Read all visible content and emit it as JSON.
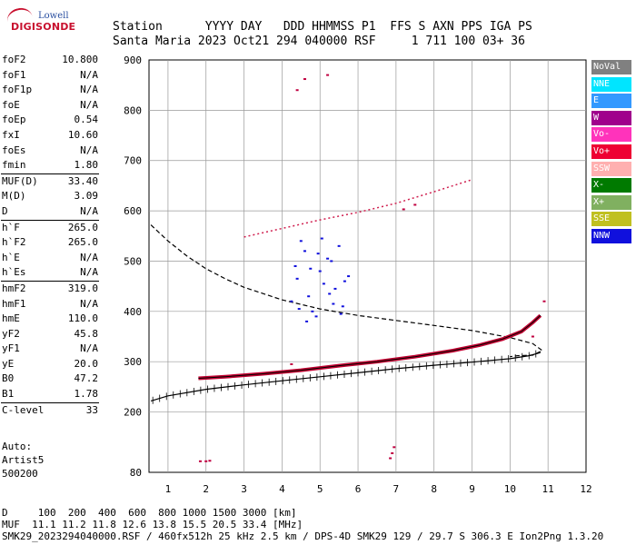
{
  "logo": {
    "line1": "Lowell",
    "line2": "DIGISONDE"
  },
  "header": {
    "line1": "Station      YYYY DAY   DDD HHMMSS P1  FFS S AXN PPS IGA PS",
    "line2": "Santa Maria 2023 Oct21 294 040000 RSF     1 711 100 03+ 36"
  },
  "params": [
    [
      {
        "k": "foF2",
        "v": "10.800"
      },
      {
        "k": "foF1",
        "v": "N/A"
      },
      {
        "k": "foF1p",
        "v": "N/A"
      },
      {
        "k": "foE",
        "v": "N/A"
      },
      {
        "k": "foEp",
        "v": "0.54"
      },
      {
        "k": "fxI",
        "v": "10.60"
      },
      {
        "k": "foEs",
        "v": "N/A"
      },
      {
        "k": "fmin",
        "v": "1.80"
      }
    ],
    [
      {
        "k": "MUF(D)",
        "v": "33.40"
      },
      {
        "k": "M(D)",
        "v": "3.09"
      },
      {
        "k": "D",
        "v": "N/A"
      }
    ],
    [
      {
        "k": "h`F",
        "v": "265.0"
      },
      {
        "k": "h`F2",
        "v": "265.0"
      },
      {
        "k": "h`E",
        "v": "N/A"
      },
      {
        "k": "h`Es",
        "v": "N/A"
      }
    ],
    [
      {
        "k": "hmF2",
        "v": "319.0"
      },
      {
        "k": "hmF1",
        "v": "N/A"
      },
      {
        "k": "hmE",
        "v": "110.0"
      },
      {
        "k": "yF2",
        "v": "45.8"
      },
      {
        "k": "yF1",
        "v": "N/A"
      },
      {
        "k": "yE",
        "v": "20.0"
      },
      {
        "k": "B0",
        "v": "47.2"
      },
      {
        "k": "B1",
        "v": "1.78"
      }
    ],
    [
      {
        "k": "C-level",
        "v": "33"
      }
    ]
  ],
  "auto": {
    "l1": "Auto:",
    "l2": "Artist5",
    "l3": "500200"
  },
  "legend": [
    {
      "label": "NoVal",
      "color": "#808080"
    },
    {
      "label": "NNE",
      "color": "#00e5ff"
    },
    {
      "label": "E",
      "color": "#3399ff"
    },
    {
      "label": "W",
      "color": "#a0008c"
    },
    {
      "label": "Vo-",
      "color": "#ff33bb"
    },
    {
      "label": "Vo+",
      "color": "#ee0033"
    },
    {
      "label": "SSW",
      "color": "#ffb0b0"
    },
    {
      "label": "X-",
      "color": "#007a00"
    },
    {
      "label": "X+",
      "color": "#80b060"
    },
    {
      "label": "SSE",
      "color": "#c0c020"
    },
    {
      "label": "NNW",
      "color": "#1010dd"
    }
  ],
  "bottom": {
    "line1": "D     100  200  400  600  800 1000 1500 3000 [km]",
    "line2": "MUF  11.1 11.2 11.8 12.6 13.8 15.5 20.5 33.4 [MHz]",
    "line3": "SMK29_2023294040000.RSF / 460fx512h 25 kHz 2.5 km / DPS-4D SMK29 129 / 29.7 S 306.3 E Ion2Png 1.3.20"
  },
  "chart_data": {
    "type": "scatter",
    "xlim": [
      0.5,
      12
    ],
    "ylim": [
      80,
      900
    ],
    "xticks": [
      1,
      2,
      3,
      4,
      5,
      6,
      7,
      8,
      9,
      10,
      11,
      12
    ],
    "yticks": [
      80,
      200,
      300,
      400,
      500,
      600,
      700,
      800,
      900
    ],
    "grid": true,
    "f2_trace": {
      "x": [
        1.8,
        2.5,
        3.5,
        4.5,
        5.5,
        6.5,
        7.5,
        8.5,
        9.2,
        9.8,
        10.3,
        10.6,
        10.8
      ],
      "y": [
        267,
        270,
        276,
        283,
        292,
        300,
        310,
        322,
        333,
        345,
        360,
        378,
        392
      ]
    },
    "profile_marked": {
      "x": [
        0.55,
        1.0,
        2.0,
        3.0,
        4.0,
        5.0,
        6.0,
        7.0,
        8.0,
        9.0,
        10.0,
        10.5,
        10.8
      ],
      "y": [
        222,
        232,
        245,
        254,
        262,
        270,
        278,
        286,
        293,
        299,
        306,
        312,
        318
      ]
    },
    "profile_dashed": {
      "x": [
        0.55,
        1.0,
        1.5,
        2.0,
        2.5,
        3.0,
        4.0,
        5.0,
        6.0,
        7.0,
        8.0,
        9.0,
        10.0,
        10.6,
        10.85,
        10.6,
        10.2,
        10.0
      ],
      "y": [
        572,
        540,
        510,
        485,
        465,
        448,
        423,
        405,
        392,
        382,
        372,
        362,
        348,
        336,
        322,
        313,
        312,
        310
      ]
    },
    "spread_cluster": {
      "x": [
        4.25,
        4.4,
        4.6,
        4.8,
        5.0,
        5.2,
        5.4,
        5.6,
        5.75,
        4.5,
        4.7,
        4.9,
        5.1,
        5.3,
        5.5,
        4.35,
        4.65,
        4.95,
        5.25,
        5.55,
        5.65,
        4.45,
        4.75,
        5.05,
        5.35
      ],
      "y": [
        420,
        465,
        520,
        400,
        480,
        505,
        445,
        410,
        470,
        540,
        430,
        390,
        455,
        500,
        530,
        490,
        380,
        515,
        435,
        395,
        460,
        405,
        485,
        545,
        415
      ]
    },
    "upper_trace": {
      "x": [
        3.0,
        4.0,
        5.0,
        6.0,
        7.0,
        8.0,
        9.0
      ],
      "y": [
        548,
        565,
        582,
        597,
        615,
        638,
        662
      ]
    },
    "misc_points": {
      "x": [
        1.85,
        2.0,
        2.1,
        6.85,
        6.9,
        6.95,
        4.4,
        4.6,
        5.2,
        4.25,
        10.6,
        10.9,
        7.2,
        7.5
      ],
      "y": [
        102,
        102,
        103,
        108,
        118,
        130,
        840,
        862,
        870,
        295,
        350,
        420,
        603,
        612
      ]
    }
  }
}
